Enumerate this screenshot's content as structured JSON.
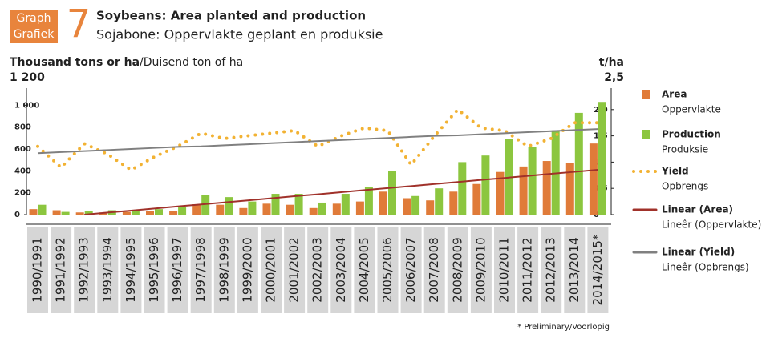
{
  "chart_data": {
    "type": "bar",
    "badge": {
      "line1": "Graph",
      "line2": "Grafiek",
      "number": "7"
    },
    "title": "Soybeans: Area planted and production",
    "subtitle": "Sojabone: Oppervlakte geplant en produksie",
    "y_label": "Thousand tons or ha",
    "y_label_af": "/Duisend ton of ha",
    "y2_label": "t/ha",
    "note": "* Preliminary/Voorlopig",
    "categories": [
      "1990/1991",
      "1991/1992",
      "1992/1993",
      "1993/1994",
      "1994/1995",
      "1995/1996",
      "1996/1997",
      "1997/1998",
      "1998/1999",
      "1999/2000",
      "2000/2001",
      "2001/2002",
      "2002/2003",
      "2003/2004",
      "2004/2005",
      "2005/2006",
      "2006/2007",
      "2007/2008",
      "2008/2009",
      "2009/2010",
      "2010/2011",
      "2011/2012",
      "2012/2013",
      "2013/2014",
      "2014/2015*"
    ],
    "ylim": [
      0,
      1200
    ],
    "yticks": [
      0,
      200,
      400,
      600,
      800,
      {
        "value": 1000,
        "label": "1 000"
      },
      {
        "value": 1200,
        "label": "1 200"
      }
    ],
    "y2lim": [
      0,
      2.5
    ],
    "y2ticks": [
      0,
      {
        "value": 0.5,
        "label": "0,5"
      },
      1,
      {
        "value": 1.5,
        "label": "1,5"
      },
      {
        "value": 2,
        "label": "2,0"
      },
      {
        "value": 2.5,
        "label": "2,5"
      }
    ],
    "series": [
      {
        "name": "Area",
        "name_af": "Oppervlakte",
        "kind": "bar",
        "color": "#e07b39",
        "values": [
          50,
          40,
          20,
          20,
          25,
          30,
          30,
          95,
          90,
          60,
          100,
          90,
          60,
          100,
          120,
          210,
          150,
          130,
          210,
          280,
          390,
          440,
          490,
          470,
          650
        ]
      },
      {
        "name": "Production",
        "name_af": "Produksie",
        "kind": "bar",
        "color": "#8cc63f",
        "values": [
          90,
          25,
          35,
          40,
          40,
          50,
          70,
          180,
          160,
          120,
          190,
          190,
          110,
          190,
          250,
          400,
          170,
          240,
          480,
          540,
          690,
          620,
          770,
          930,
          1030
        ]
      },
      {
        "name": "Yield",
        "name_af": "Opbrengs",
        "kind": "dots",
        "axis": "y2",
        "color": "#f2b233",
        "values": [
          1.3,
          0.9,
          1.35,
          1.15,
          0.85,
          1.1,
          1.3,
          1.55,
          1.45,
          1.5,
          1.55,
          1.6,
          1.3,
          1.5,
          1.65,
          1.6,
          0.95,
          1.5,
          2.0,
          1.65,
          1.6,
          1.3,
          1.45,
          1.75,
          1.75
        ]
      },
      {
        "name": "Linear (Area)",
        "name_af": "Lineêr (Oppervlakte)",
        "kind": "line",
        "color": "#a0312a",
        "values": [
          null,
          null,
          0,
          19,
          37,
          56,
          75,
          93,
          112,
          130,
          149,
          168,
          186,
          205,
          224,
          242,
          261,
          280,
          298,
          317,
          335,
          354,
          373,
          391,
          410
        ]
      },
      {
        "name": "Linear (Yield)",
        "name_af": "Lineêr (Opbrengs)",
        "kind": "line",
        "axis": "y2",
        "color": "#808080",
        "values": [
          1.17,
          1.19,
          1.21,
          1.23,
          1.25,
          1.27,
          1.29,
          1.3,
          1.32,
          1.34,
          1.36,
          1.38,
          1.4,
          1.42,
          1.44,
          1.46,
          1.48,
          1.5,
          1.51,
          1.53,
          1.55,
          1.57,
          1.59,
          1.61,
          1.63
        ]
      }
    ]
  }
}
